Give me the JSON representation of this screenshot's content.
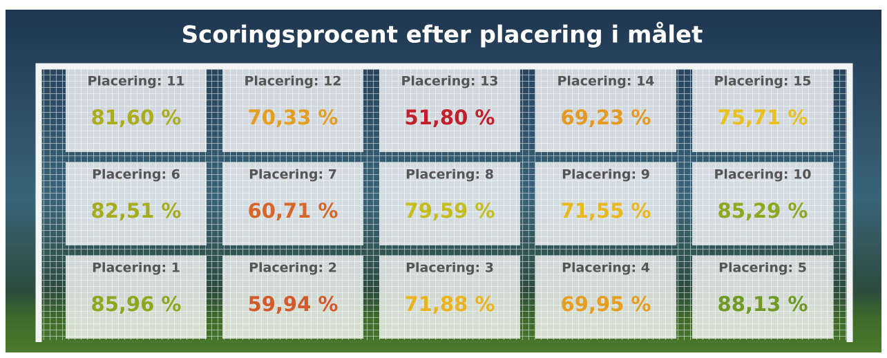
{
  "title": "Scoringsprocent efter placering i målet",
  "cells": [
    {
      "label": "Placering: 11",
      "value": "81,60 %",
      "color": "#a9ad1f"
    },
    {
      "label": "Placering: 12",
      "value": "70,33 %",
      "color": "#e39e22"
    },
    {
      "label": "Placering: 13",
      "value": "51,80 %",
      "color": "#c1202c"
    },
    {
      "label": "Placering: 14",
      "value": "69,23 %",
      "color": "#e49a22"
    },
    {
      "label": "Placering: 15",
      "value": "75,71 %",
      "color": "#e9c020"
    },
    {
      "label": "Placering: 6",
      "value": "82,51 %",
      "color": "#a6ac1f"
    },
    {
      "label": "Placering: 7",
      "value": "60,71 %",
      "color": "#d7662a"
    },
    {
      "label": "Placering: 8",
      "value": "79,59 %",
      "color": "#c4bd1f"
    },
    {
      "label": "Placering: 9",
      "value": "71,55 %",
      "color": "#e9b820"
    },
    {
      "label": "Placering: 10",
      "value": "85,29 %",
      "color": "#8ea822"
    },
    {
      "label": "Placering: 1",
      "value": "85,96 %",
      "color": "#8ca822"
    },
    {
      "label": "Placering: 2",
      "value": "59,94 %",
      "color": "#d35a2a"
    },
    {
      "label": "Placering: 3",
      "value": "71,88 %",
      "color": "#e9b420"
    },
    {
      "label": "Placering: 4",
      "value": "69,95 %",
      "color": "#e49f22"
    },
    {
      "label": "Placering: 5",
      "value": "88,13 %",
      "color": "#6f9a25"
    }
  ]
}
